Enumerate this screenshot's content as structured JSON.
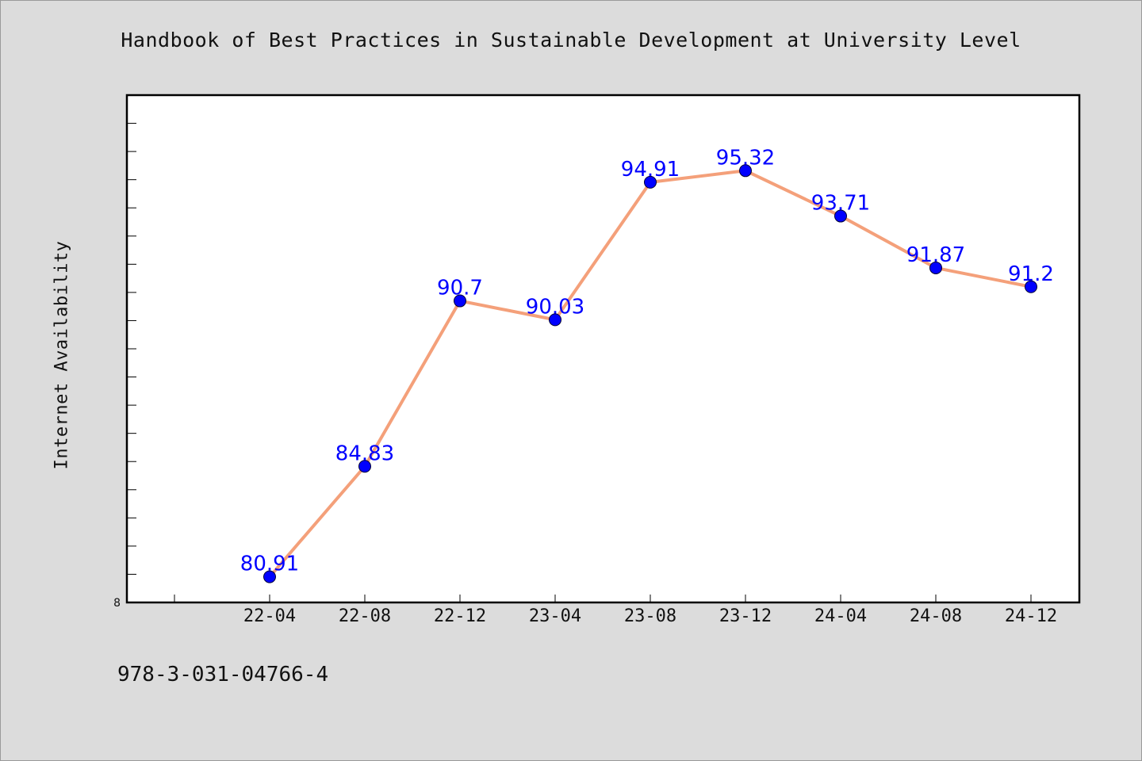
{
  "title": "Handbook of Best Practices in Sustainable Development at University Level",
  "footer_text": "978-3-031-04766-4",
  "colors": {
    "background": "#dcdcdc",
    "plot_background": "#ffffff",
    "line": "#f4a07a",
    "marker": "#0000ff",
    "data_label": "#0000ff"
  },
  "chart_data": {
    "type": "line",
    "title": "Handbook of Best Practices in Sustainable Development at University Level",
    "xlabel": "",
    "ylabel": "Internet Availability",
    "categories": [
      "22-04",
      "22-08",
      "22-12",
      "23-04",
      "23-08",
      "23-12",
      "24-04",
      "24-08",
      "24-12"
    ],
    "values": [
      80.91,
      84.83,
      90.7,
      90.03,
      94.91,
      95.32,
      93.71,
      91.87,
      91.2
    ],
    "data_labels": [
      "80.91",
      "84.83",
      "90.7",
      "90.03",
      "94.91",
      "95.32",
      "93.71",
      "91.87",
      "91.2"
    ],
    "y_tick_labels": [
      "8"
    ],
    "ylim": [
      80,
      98
    ],
    "grid": false,
    "legend": "none"
  }
}
